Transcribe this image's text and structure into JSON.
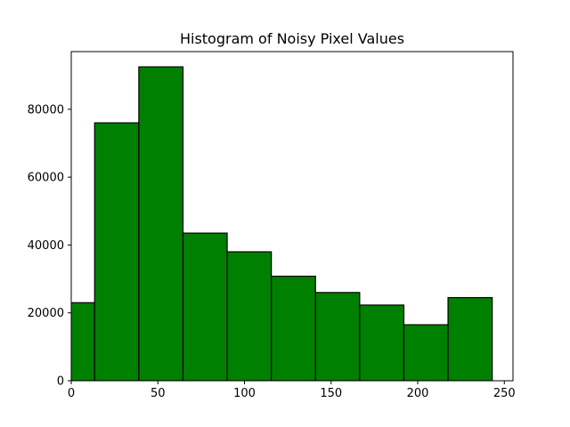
{
  "chart_data": {
    "type": "bar",
    "title": "Histogram of Noisy Pixel Values",
    "xlabel": "",
    "ylabel": "",
    "bar_color": "#008000",
    "edge_color": "#000000",
    "bins": [
      {
        "x0": -12,
        "x1": 13.5,
        "count": 23000
      },
      {
        "x0": 13.5,
        "x1": 39,
        "count": 76000
      },
      {
        "x0": 39,
        "x1": 64.5,
        "count": 92500
      },
      {
        "x0": 64.5,
        "x1": 90,
        "count": 43500
      },
      {
        "x0": 90,
        "x1": 115.5,
        "count": 38000
      },
      {
        "x0": 115.5,
        "x1": 141,
        "count": 30800
      },
      {
        "x0": 141,
        "x1": 166.5,
        "count": 26000
      },
      {
        "x0": 166.5,
        "x1": 192,
        "count": 22300
      },
      {
        "x0": 192,
        "x1": 217.5,
        "count": 16500
      },
      {
        "x0": 217.5,
        "x1": 243,
        "count": 24500
      }
    ],
    "xlim": [
      0,
      255
    ],
    "ylim": [
      0,
      97000
    ],
    "xticks": [
      0,
      50,
      100,
      150,
      200,
      250
    ],
    "yticks": [
      0,
      20000,
      40000,
      60000,
      80000
    ],
    "grid": false
  }
}
